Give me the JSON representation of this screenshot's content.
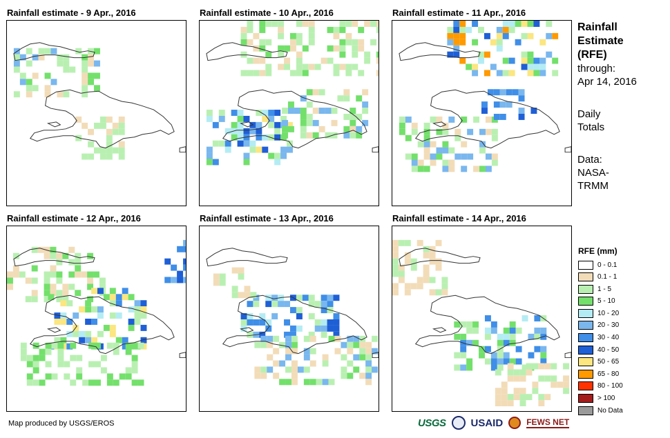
{
  "panels": [
    {
      "title": "Rainfall estimate - 9 Apr., 2016"
    },
    {
      "title": "Rainfall estimate - 10 Apr., 2016"
    },
    {
      "title": "Rainfall estimate - 11 Apr., 2016"
    },
    {
      "title": "Rainfall estimate - 12 Apr., 2016"
    },
    {
      "title": "Rainfall estimate - 13 Apr., 2016"
    },
    {
      "title": "Rainfall estimate - 14 Apr., 2016"
    }
  ],
  "side": {
    "title_lines": [
      "Rainfall",
      "Estimate",
      "(RFE)"
    ],
    "through_label": "through:",
    "through_date": "Apr 14, 2016",
    "totals_lines": [
      "Daily",
      "Totals"
    ],
    "data_lines": [
      "Data:",
      "NASA-",
      "TRMM"
    ]
  },
  "legend": {
    "title": "RFE (mm)",
    "items": [
      {
        "label": "0 - 0.1",
        "color": "#ffffff"
      },
      {
        "label": "0.1 - 1",
        "color": "#f2dcb8"
      },
      {
        "label": "1 - 5",
        "color": "#b9f0b2"
      },
      {
        "label": "5 - 10",
        "color": "#73e06b"
      },
      {
        "label": "10 - 20",
        "color": "#b4ecf4"
      },
      {
        "label": "20 - 30",
        "color": "#79b7ee"
      },
      {
        "label": "30 - 40",
        "color": "#3f8ee8"
      },
      {
        "label": "40 - 50",
        "color": "#1f5fd6"
      },
      {
        "label": "50 - 65",
        "color": "#fbe680"
      },
      {
        "label": "65 - 80",
        "color": "#ff9a00"
      },
      {
        "label": "80 - 100",
        "color": "#ff3300"
      },
      {
        "label": "> 100",
        "color": "#a51c1c"
      },
      {
        "label": "No Data",
        "color": "#9a9a9a"
      }
    ]
  },
  "credit": "Map produced by USGS/EROS",
  "logos": {
    "usgs": "USGS",
    "usaid": "USAID",
    "fews": "FEWS NET"
  }
}
